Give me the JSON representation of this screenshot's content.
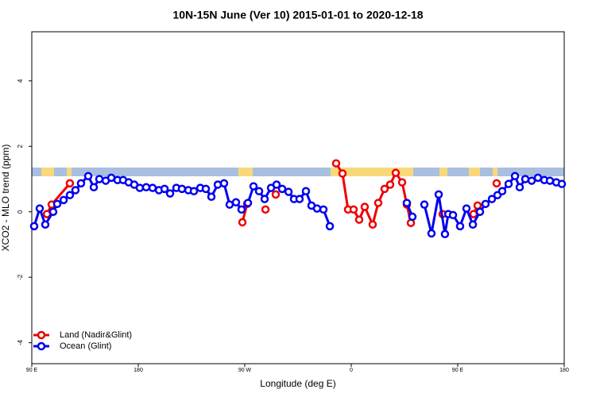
{
  "chart_data": {
    "type": "line",
    "title": "10N-15N June (Ver 10)   2015-01-01 to 2020-12-18",
    "x_label": "Longitude (deg E)",
    "y_label": "XCO2 - MLO trend (ppm)",
    "xlim": [
      90,
      540
    ],
    "xticks": [
      {
        "value": 90,
        "label": "90 E"
      },
      {
        "value": 180,
        "label": "180"
      },
      {
        "value": 270,
        "label": "90 W"
      },
      {
        "value": 360,
        "label": "0"
      },
      {
        "value": 450,
        "label": "90 E"
      },
      {
        "value": 540,
        "label": "180"
      }
    ],
    "ylim": [
      -4.64,
      5.5
    ],
    "yticks": [
      -4,
      -2,
      0,
      2,
      4
    ],
    "legend": "bottomleft",
    "series": [
      {
        "name": "Land (Nadir&Glint)",
        "color": "#ee0000",
        "x": [
          102.8,
          106.8,
          122.2,
          null,
          268.0,
          272.0,
          null,
          287.5,
          null,
          296.2,
          null,
          347.2,
          352.6,
          357.3,
          362.0,
          366.7,
          371.4,
          378.1,
          382.8,
          388.2,
          392.9,
          397.6,
          403.0,
          407.0,
          410.4,
          null,
          437.2,
          null,
          463.4,
          466.8,
          null,
          482.9
        ],
        "values": [
          -0.07,
          0.22,
          0.87,
          null,
          -0.32,
          0.24,
          null,
          0.07,
          null,
          0.53,
          null,
          1.48,
          1.17,
          0.07,
          0.07,
          -0.24,
          0.15,
          -0.39,
          0.27,
          0.7,
          0.83,
          1.19,
          0.9,
          0.22,
          -0.34,
          null,
          -0.07,
          null,
          -0.07,
          0.19,
          null,
          0.87
        ]
      },
      {
        "name": "Ocean (Glint)",
        "color": "#0000ee",
        "x": [
          92.0,
          96.7,
          101.4,
          108.1,
          111.5,
          116.9,
          122.2,
          126.9,
          131.6,
          137.7,
          142.4,
          147.1,
          152.5,
          157.2,
          162.5,
          167.2,
          171.9,
          176.6,
          181.3,
          186.7,
          192.1,
          197.5,
          202.2,
          206.9,
          212.2,
          216.9,
          222.3,
          227.0,
          232.4,
          237.1,
          241.8,
          247.2,
          252.5,
          257.2,
          262.6,
          267.3,
          272.7,
          277.4,
          282.1,
          286.8,
          292.2,
          296.9,
          301.6,
          307.0,
          311.6,
          316.3,
          321.7,
          326.4,
          331.1,
          336.5,
          341.9,
          null,
          407.0,
          411.7,
          null,
          421.8,
          427.8,
          433.9,
          439.2,
          442.0,
          446.0,
          452.0,
          457.4,
          462.8,
          468.8,
          473.5,
          478.9,
          483.6,
          487.6,
          493.0,
          498.4,
          502.4,
          507.1,
          512.5,
          517.8,
          523.2,
          527.9,
          533.3,
          538.0
        ],
        "values": [
          -0.44,
          0.1,
          -0.39,
          0,
          0.24,
          0.36,
          0.51,
          0.66,
          0.87,
          1.09,
          0.75,
          1.0,
          0.95,
          1.04,
          0.97,
          0.97,
          0.9,
          0.83,
          0.73,
          0.75,
          0.73,
          0.66,
          0.7,
          0.56,
          0.73,
          0.7,
          0.66,
          0.63,
          0.73,
          0.7,
          0.46,
          0.83,
          0.87,
          0.22,
          0.29,
          0.07,
          0.27,
          0.78,
          0.63,
          0.39,
          0.73,
          0.83,
          0.7,
          0.61,
          0.39,
          0.39,
          0.63,
          0.19,
          0.1,
          0.07,
          -0.44,
          null,
          0.27,
          -0.15,
          null,
          0.22,
          -0.66,
          0.53,
          -0.68,
          -0.07,
          -0.1,
          -0.44,
          0.1,
          -0.39,
          0,
          0.24,
          0.39,
          0.51,
          0.63,
          0.85,
          1.09,
          0.75,
          1.0,
          0.95,
          1.04,
          0.97,
          0.95,
          0.9,
          0.85
        ]
      }
    ]
  }
}
